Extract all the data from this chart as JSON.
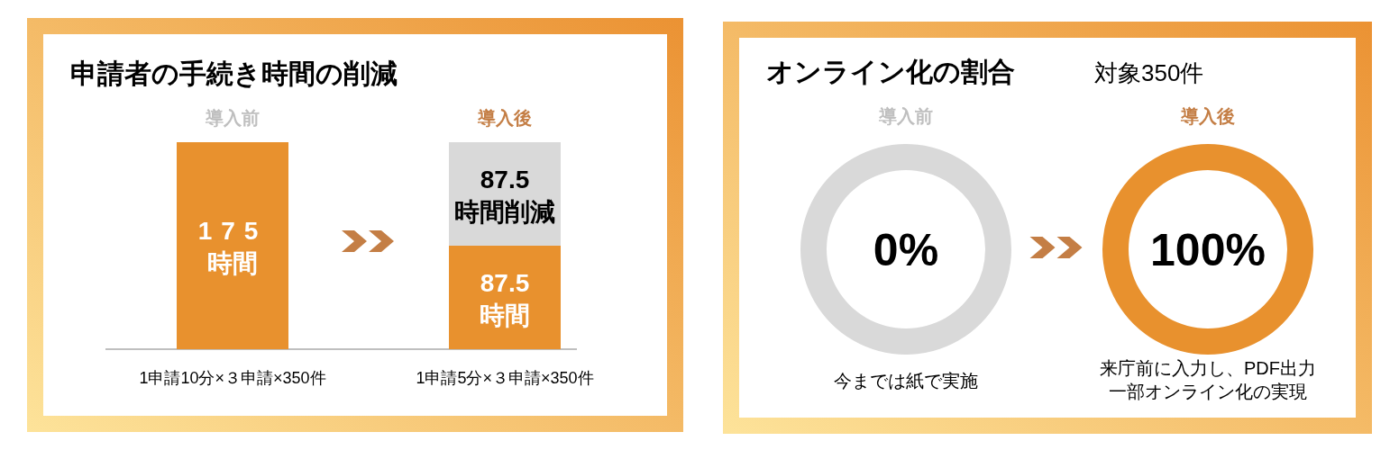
{
  "chart_data": [
    {
      "type": "bar",
      "stacked": true,
      "title": "申請者の手続き時間の削減",
      "categories": [
        "導入前",
        "導入後"
      ],
      "series": [
        {
          "color": "#e8912e",
          "values": [
            175,
            87.5
          ],
          "value_labels": [
            "175\n時間",
            "87.5\n時間"
          ]
        },
        {
          "color": "#d9d9d9",
          "values": [
            null,
            87.5
          ],
          "value_labels": [
            null,
            "87.5\n時間削減"
          ]
        }
      ],
      "annotations": [
        "1申請10分×３申請×350件",
        "1申請5分×３申請×350件"
      ]
    },
    {
      "type": "donut",
      "title": "オンライン化の割合",
      "subtitle": "対象350件",
      "categories": [
        null,
        null
      ],
      "series": [
        {
          "name": "導入前",
          "values": [
            0,
            100
          ],
          "colors": [
            "#e8912e",
            "#d9d9d9"
          ],
          "value_labels": [
            "0%",
            null
          ]
        },
        {
          "name": "導入後",
          "values": [
            100,
            0
          ],
          "colors": [
            "#e8912e",
            "#d9d9d9"
          ],
          "value_labels": [
            "100%",
            null
          ]
        }
      ],
      "annotations": [
        "今までは紙で実施",
        "来庁前に入力し、PDF出力",
        "一部オンライン化の実現"
      ]
    }
  ]
}
